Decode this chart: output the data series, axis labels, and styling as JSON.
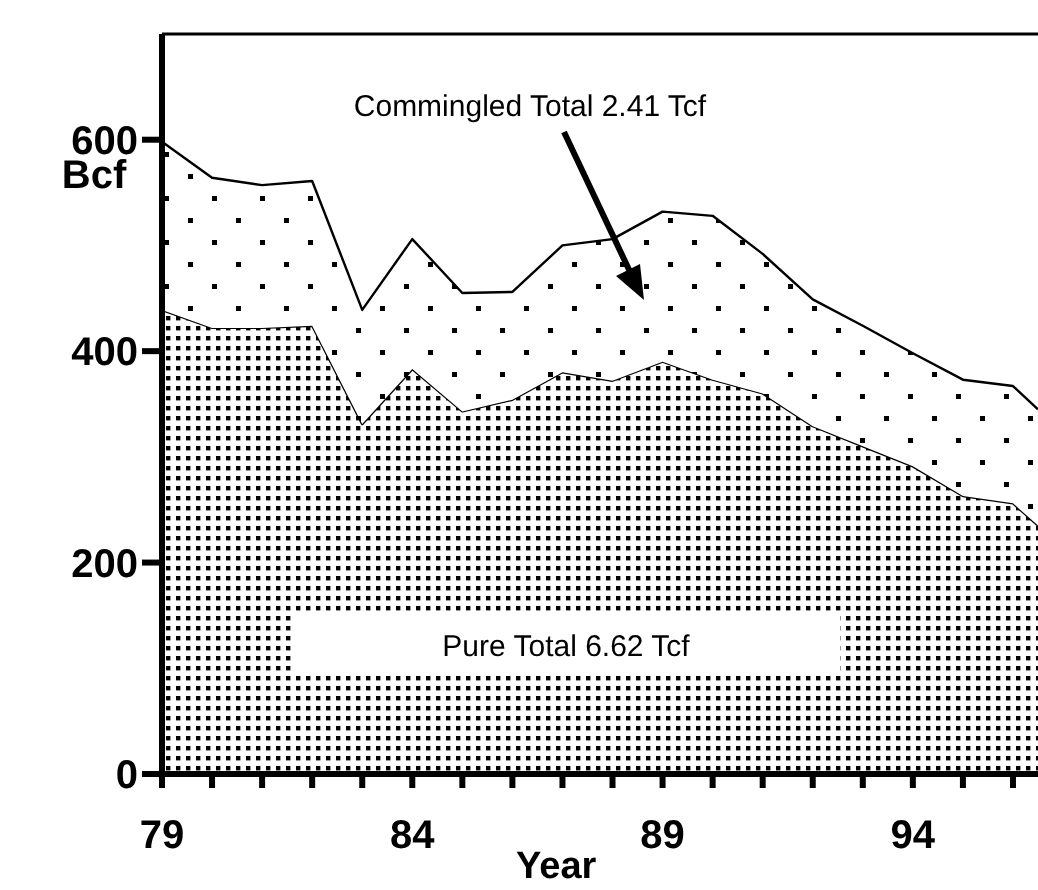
{
  "chart_data": {
    "type": "area",
    "stacked": true,
    "xlabel": "Year",
    "ylabel": "Bcf",
    "x": [
      1979,
      1980,
      1981,
      1982,
      1983,
      1984,
      1985,
      1986,
      1987,
      1988,
      1989,
      1990,
      1991,
      1992,
      1993,
      1994,
      1995,
      1996,
      1996.5
    ],
    "series": [
      {
        "color": "#000000",
        "values": [
          439,
          422,
          422,
          424,
          331,
          383,
          343,
          354,
          380,
          372,
          390,
          373,
          360,
          329,
          310,
          291,
          263,
          256,
          235
        ]
      },
      {
        "color": "#000000",
        "values": [
          159,
          142,
          135,
          137,
          108,
          123,
          112,
          102,
          120,
          134,
          142,
          155,
          132,
          120,
          114,
          107,
          110,
          111,
          110
        ]
      }
    ],
    "xlim": [
      1979,
      1996.5
    ],
    "xticks": [
      {
        "value": 1979,
        "label": "79"
      },
      {
        "value": 1980,
        "label": null
      },
      {
        "value": 1981,
        "label": null
      },
      {
        "value": 1982,
        "label": null
      },
      {
        "value": 1983,
        "label": null
      },
      {
        "value": 1984,
        "label": "84"
      },
      {
        "value": 1985,
        "label": null
      },
      {
        "value": 1986,
        "label": null
      },
      {
        "value": 1987,
        "label": null
      },
      {
        "value": 1988,
        "label": null
      },
      {
        "value": 1989,
        "label": "89"
      },
      {
        "value": 1990,
        "label": null
      },
      {
        "value": 1991,
        "label": null
      },
      {
        "value": 1992,
        "label": null
      },
      {
        "value": 1993,
        "label": null
      },
      {
        "value": 1994,
        "label": "94"
      },
      {
        "value": 1995,
        "label": null
      },
      {
        "value": 1996,
        "label": null
      }
    ],
    "ylim": [
      0,
      700
    ],
    "yticks": [
      0,
      200,
      400,
      600
    ],
    "annotations": [
      "Commingled Total 2.41 Tcf",
      "Pure Total 6.62 Tcf"
    ],
    "grid": false,
    "legend": false
  }
}
